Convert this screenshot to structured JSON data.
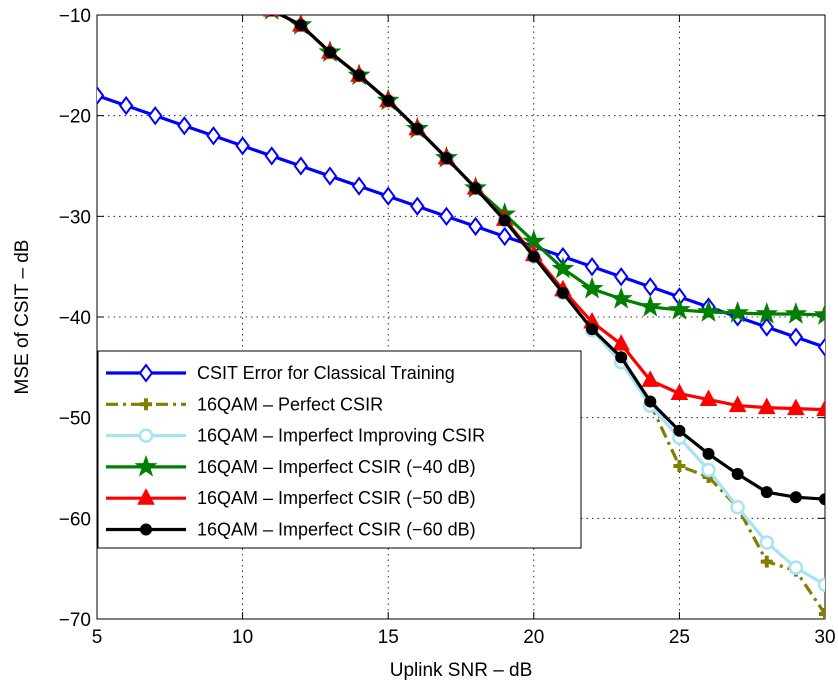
{
  "chart_data": {
    "type": "line",
    "title": "",
    "xlabel": "Uplink SNR – dB",
    "ylabel": "MSE of CSIT – dB",
    "xlim": [
      5,
      30
    ],
    "ylim": [
      -70,
      -10
    ],
    "x_ticks": [
      5,
      10,
      15,
      20,
      25,
      30
    ],
    "y_ticks": [
      -70,
      -60,
      -50,
      -40,
      -30,
      -20,
      -10
    ],
    "x_tick_labels": [
      "5",
      "10",
      "15",
      "20",
      "25",
      "30"
    ],
    "y_tick_labels": [
      "−70",
      "−60",
      "−50",
      "−40",
      "−30",
      "−20",
      "−10"
    ],
    "grid": true,
    "legend_position": "lower-left",
    "series": [
      {
        "name": "CSIT Error for Classical Training",
        "color": "#0000ff",
        "line_style": "solid",
        "marker": "diamond",
        "marker_fill": "#ffffff",
        "x": [
          5,
          6,
          7,
          8,
          9,
          10,
          11,
          12,
          13,
          14,
          15,
          16,
          17,
          18,
          19,
          20,
          21,
          22,
          23,
          24,
          25,
          26,
          27,
          28,
          29,
          30
        ],
        "y": [
          -18,
          -19,
          -20,
          -21,
          -22,
          -23,
          -24,
          -25,
          -26,
          -27,
          -28,
          -29,
          -30,
          -31,
          -32,
          -33,
          -34,
          -35,
          -36,
          -37,
          -38,
          -39,
          -40,
          -41,
          -42,
          -43
        ]
      },
      {
        "name": "16QAM – Perfect CSIR",
        "color": "#808000",
        "line_style": "dashdot",
        "marker": "plus",
        "marker_fill": "#808000",
        "x": [
          11,
          12,
          13,
          14,
          15,
          16,
          17,
          18,
          19,
          20,
          21,
          22,
          23,
          24,
          25,
          26,
          27,
          28,
          29,
          30
        ],
        "y": [
          -9.5,
          -11,
          -13.7,
          -16,
          -18.5,
          -21.3,
          -24.2,
          -27.2,
          -30.4,
          -34,
          -37.6,
          -41.3,
          -44.5,
          -48.6,
          -54.8,
          -55.9,
          -58.9,
          -64.3,
          -65.2,
          -69.5
        ]
      },
      {
        "name": "16QAM – Imperfect Improving CSIR",
        "color": "#a6e3f5",
        "line_style": "solid",
        "marker": "circle",
        "marker_fill": "#ffffff",
        "x": [
          11,
          12,
          13,
          14,
          15,
          16,
          17,
          18,
          19,
          20,
          21,
          22,
          23,
          24,
          25,
          26,
          27,
          28,
          29,
          30
        ],
        "y": [
          -9.5,
          -11,
          -13.7,
          -16,
          -18.5,
          -21.3,
          -24.2,
          -27.2,
          -30.4,
          -34,
          -37.6,
          -41.3,
          -44.5,
          -48.8,
          -52,
          -55.2,
          -58.9,
          -62.4,
          -64.9,
          -66.6
        ]
      },
      {
        "name": "16QAM – Imperfect CSIR (−40 dB)",
        "color": "#008000",
        "line_style": "solid",
        "marker": "star",
        "marker_fill": "#008000",
        "x": [
          11,
          12,
          13,
          14,
          15,
          16,
          17,
          18,
          19,
          20,
          21,
          22,
          23,
          24,
          25,
          26,
          27,
          28,
          29,
          30
        ],
        "y": [
          -9.5,
          -11,
          -13.7,
          -16,
          -18.5,
          -21.3,
          -24.2,
          -27.2,
          -29.8,
          -32.5,
          -35.2,
          -37.2,
          -38.2,
          -39,
          -39.3,
          -39.5,
          -39.6,
          -39.7,
          -39.7,
          -39.8
        ]
      },
      {
        "name": "16QAM – Imperfect CSIR (−50 dB)",
        "color": "#ff0000",
        "line_style": "solid",
        "marker": "triangle",
        "marker_fill": "#ff0000",
        "x": [
          11,
          12,
          13,
          14,
          15,
          16,
          17,
          18,
          19,
          20,
          21,
          22,
          23,
          24,
          25,
          26,
          27,
          28,
          29,
          30
        ],
        "y": [
          -9.5,
          -11,
          -13.7,
          -16,
          -18.5,
          -21.3,
          -24.2,
          -27.2,
          -30.3,
          -33.8,
          -37.3,
          -40.5,
          -42.7,
          -46.3,
          -47.6,
          -48.2,
          -48.8,
          -49,
          -49.1,
          -49.2
        ]
      },
      {
        "name": "16QAM – Imperfect CSIR (−60 dB)",
        "color": "#000000",
        "line_style": "solid",
        "marker": "circle",
        "marker_fill": "#000000",
        "x": [
          11,
          12,
          13,
          14,
          15,
          16,
          17,
          18,
          19,
          20,
          21,
          22,
          23,
          24,
          25,
          26,
          27,
          28,
          29,
          30
        ],
        "y": [
          -9.5,
          -11,
          -13.7,
          -16,
          -18.5,
          -21.3,
          -24.2,
          -27.2,
          -30.4,
          -34,
          -37.6,
          -41.2,
          -44,
          -48.4,
          -51.3,
          -53.6,
          -55.6,
          -57.4,
          -57.9,
          -58.1
        ]
      }
    ]
  }
}
